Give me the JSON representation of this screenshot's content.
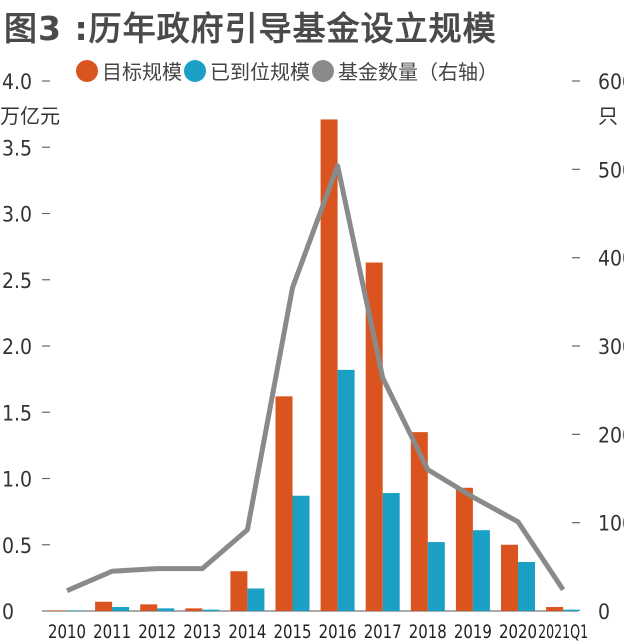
{
  "title": "图3 :历年政府引导基金设立规模",
  "colors": {
    "target": "#d9541e",
    "paid": "#1aa0c4",
    "count": "#8a8a8a"
  },
  "chart_data": {
    "type": "bar",
    "title": "图3 :历年政府引导基金设立规模",
    "categories": [
      "2010",
      "2011",
      "2012",
      "2013",
      "2014",
      "2015",
      "2016",
      "2017",
      "2018",
      "2019",
      "2020",
      "2021Q1"
    ],
    "series": [
      {
        "name": "目标规模",
        "type": "bar",
        "axis": "left",
        "values": [
          0.005,
          0.07,
          0.05,
          0.02,
          0.3,
          1.62,
          3.71,
          2.63,
          1.35,
          0.93,
          0.5,
          0.03
        ]
      },
      {
        "name": "已到位规模",
        "type": "bar",
        "axis": "left",
        "values": [
          0.005,
          0.03,
          0.02,
          0.01,
          0.17,
          0.87,
          1.82,
          0.89,
          0.52,
          0.61,
          0.37,
          0.01
        ]
      },
      {
        "name": "基金数量（右轴）",
        "type": "line",
        "axis": "right",
        "values": [
          23,
          45,
          48,
          48,
          92,
          366,
          504,
          264,
          160,
          129,
          101,
          24
        ]
      }
    ],
    "ylabel": "万亿元",
    "ylim": [
      0,
      4.0
    ],
    "yticks": [
      "0",
      "0.5",
      "1.0",
      "1.5",
      "2.0",
      "2.5",
      "3.0",
      "3.5",
      "4.0"
    ],
    "y2label": "只",
    "y2lim": [
      0,
      600
    ],
    "y2ticks": [
      "0",
      "100",
      "200",
      "300",
      "400",
      "500",
      "600"
    ],
    "grid": false,
    "legend": "top"
  }
}
